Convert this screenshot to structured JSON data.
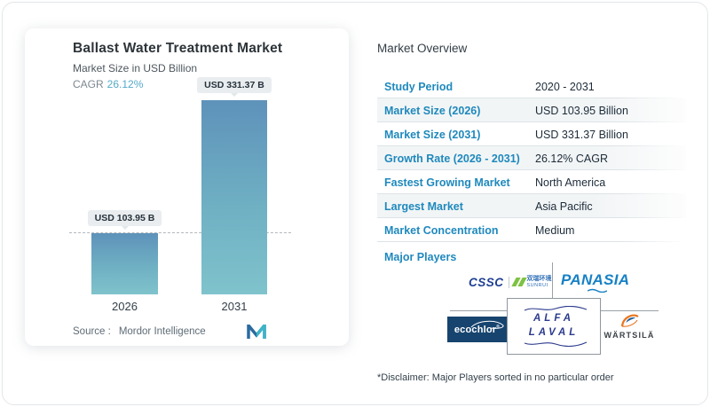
{
  "chart_card": {
    "title": "Ballast Water Treatment Market",
    "subtitle": "Market Size in USD Billion",
    "cagr_label": "CAGR",
    "cagr_value": "26.12%",
    "source_label": "Source :",
    "source_value": "Mordor Intelligence"
  },
  "chart_data": {
    "type": "bar",
    "title": "Ballast Water Treatment Market",
    "ylabel": "Market Size in USD Billion",
    "categories": [
      "2026",
      "2031"
    ],
    "values": [
      103.95,
      331.37
    ],
    "bar_labels": [
      "USD 103.95 B",
      "USD 331.37 B"
    ],
    "unit": "USD Billion",
    "cagr": "26.12%",
    "baseline_value": 103.95,
    "ylim": [
      0,
      331.37
    ],
    "grid": "single dashed reference line at 2026 value",
    "legend": "none",
    "bar_color_top": "#5e92ba",
    "bar_color_bottom": "#7fc3cc"
  },
  "overview": {
    "title": "Market Overview",
    "rows": [
      {
        "label": "Study Period",
        "value": "2020 - 2031"
      },
      {
        "label": "Market Size (2026)",
        "value": "USD 103.95 Billion"
      },
      {
        "label": "Market Size (2031)",
        "value": "USD 331.37 Billion"
      },
      {
        "label": "Growth Rate (2026 - 2031)",
        "value": "26.12% CAGR"
      },
      {
        "label": "Fastest Growing Market",
        "value": "North America"
      },
      {
        "label": "Largest Market",
        "value": "Asia Pacific"
      },
      {
        "label": "Market Concentration",
        "value": "Medium"
      }
    ],
    "major_players_label": "Major Players",
    "players": {
      "cssc": "CSSC",
      "sunrui_cn": "双瑞环境",
      "sunrui_en": "SUNRUI",
      "panasia": "PANASIA",
      "ecochlor": "ecochlor",
      "alfa_line1": "ALFA",
      "alfa_line2": "LAVAL",
      "wartsila": "WÄRTSILÄ"
    },
    "disclaimer": "*Disclaimer: Major Players sorted in no particular order"
  },
  "colors": {
    "accent_blue": "#1f89bd",
    "cagr_teal": "#54a9c9",
    "bar_top": "#5e92ba",
    "bar_bottom": "#7fc3cc",
    "cssc_blue": "#1d3e92",
    "sunrui_green": "#7dc242",
    "panasia_blue": "#1781c5",
    "ecochlor_navy": "#17446f",
    "alfa_blue": "#2b3a8c",
    "wartsila_orange": "#e87722",
    "wartsila_blue": "#1d5a96"
  }
}
